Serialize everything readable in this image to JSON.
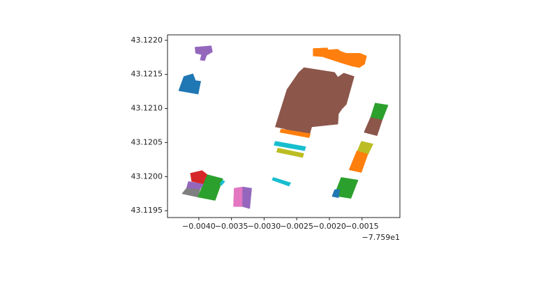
{
  "chart_data": {
    "type": "polygons",
    "x_offset_label": "−7.759e1",
    "xlim": [
      -0.00448,
      -0.00092
    ],
    "ylim": [
      43.1194,
      43.12208
    ],
    "xticks": [
      {
        "value": -0.004,
        "label": "−0.0040"
      },
      {
        "value": -0.0035,
        "label": "−0.0035"
      },
      {
        "value": -0.003,
        "label": "−0.0030"
      },
      {
        "value": -0.0025,
        "label": "−0.0025"
      },
      {
        "value": -0.002,
        "label": "−0.0020"
      },
      {
        "value": -0.0015,
        "label": "−0.0015"
      }
    ],
    "yticks": [
      43.1195,
      {
        "value": 43.12,
        "label": "43.1200"
      },
      43.1205,
      {
        "value": 43.121,
        "label": "43.1210"
      },
      43.1215,
      {
        "value": 43.122,
        "label": "43.1220"
      }
    ],
    "polygons": [
      {
        "color": "#9467bd",
        "x": [
          -0.00406,
          -0.00381,
          -0.00379,
          -0.00388,
          -0.00391,
          -0.00398,
          -0.00396,
          -0.00405
        ],
        "y": [
          43.1219,
          43.12192,
          43.12183,
          43.12178,
          43.1217,
          43.12171,
          43.12179,
          43.12181
        ]
      },
      {
        "color": "#1f77b4",
        "x": [
          -0.00423,
          -0.00409,
          -0.00405,
          -0.00397,
          -0.00401,
          -0.00431
        ],
        "y": [
          43.12147,
          43.12151,
          43.12141,
          43.1214,
          43.12121,
          43.12126
        ]
      },
      {
        "color": "#ff7f0e",
        "x": [
          -0.00225,
          -0.00203,
          -0.00202,
          -0.00187,
          -0.00183,
          -0.00174,
          -0.00153,
          -0.00143,
          -0.00146,
          -0.00154,
          -0.00165,
          -0.00179,
          -0.00192,
          -0.00211,
          -0.00225
        ],
        "y": [
          43.12188,
          43.12189,
          43.12186,
          43.12187,
          43.12184,
          43.12181,
          43.12181,
          43.12177,
          43.12165,
          43.1216,
          43.12162,
          43.12166,
          43.1217,
          43.12176,
          43.12177
        ]
      },
      {
        "color": "#8c564b",
        "x": [
          -0.00283,
          -0.00265,
          -0.00247,
          -0.00239,
          -0.00192,
          -0.00187,
          -0.00178,
          -0.00162,
          -0.00174,
          -0.00181,
          -0.00186,
          -0.00187,
          -0.00227,
          -0.0023,
          -0.00256,
          -0.00268
        ],
        "y": [
          43.12073,
          43.12128,
          43.12153,
          43.1216,
          43.12153,
          43.12146,
          43.12152,
          43.12147,
          43.12106,
          43.12099,
          43.12092,
          43.12077,
          43.12073,
          43.12063,
          43.12064,
          43.1207
        ]
      },
      {
        "color": "#ff7f0e",
        "x": [
          -0.00274,
          -0.00229,
          -0.00231,
          -0.00276
        ],
        "y": [
          43.1207,
          43.12063,
          43.12057,
          43.12065
        ]
      },
      {
        "color": "#17becf",
        "x": [
          -0.00283,
          -0.00236,
          -0.00238,
          -0.00285
        ],
        "y": [
          43.12052,
          43.12044,
          43.12038,
          43.12046
        ]
      },
      {
        "color": "#bcbd22",
        "x": [
          -0.00279,
          -0.00239,
          -0.00241,
          -0.00281
        ],
        "y": [
          43.12042,
          43.12034,
          43.12028,
          43.12036
        ]
      },
      {
        "color": "#2ca02c",
        "x": [
          -0.0013,
          -0.0011,
          -0.00119,
          -0.00137
        ],
        "y": [
          43.12108,
          43.12105,
          43.12083,
          43.12087
        ]
      },
      {
        "color": "#8c564b",
        "x": [
          -0.00137,
          -0.00119,
          -0.00127,
          -0.00147
        ],
        "y": [
          43.12087,
          43.12083,
          43.1206,
          43.12065
        ]
      },
      {
        "color": "#bcbd22",
        "x": [
          -0.00151,
          -0.00133,
          -0.00141,
          -0.00158
        ],
        "y": [
          43.12052,
          43.12048,
          43.12032,
          43.12036
        ]
      },
      {
        "color": "#ff7f0e",
        "x": [
          -0.00158,
          -0.00141,
          -0.00151,
          -0.0017
        ],
        "y": [
          43.12038,
          43.12033,
          43.12006,
          43.1201
        ]
      },
      {
        "color": "#2ca02c",
        "x": [
          -0.00182,
          -0.00156,
          -0.00167,
          -0.00193
        ],
        "y": [
          43.11999,
          43.11995,
          43.11968,
          43.11972
        ]
      },
      {
        "color": "#1f77b4",
        "x": [
          -0.00192,
          -0.00184,
          -0.00186,
          -0.00196
        ],
        "y": [
          43.11981,
          43.11981,
          43.11969,
          43.11971
        ]
      },
      {
        "color": "#17becf",
        "x": [
          -0.00286,
          -0.00259,
          -0.00262,
          -0.00288
        ],
        "y": [
          43.11999,
          43.11991,
          43.11986,
          43.11995
        ]
      },
      {
        "color": "#d62728",
        "x": [
          -0.00413,
          -0.00395,
          -0.00387,
          -0.00393,
          -0.00411
        ],
        "y": [
          43.12005,
          43.12009,
          43.12003,
          43.11989,
          43.11993
        ]
      },
      {
        "color": "#2ca02c",
        "x": [
          -0.00387,
          -0.00363,
          -0.00375,
          -0.00402,
          -0.00393
        ],
        "y": [
          43.12003,
          43.11997,
          43.11965,
          43.1197,
          43.11989
        ]
      },
      {
        "color": "#9467bd",
        "x": [
          -0.00416,
          -0.00393,
          -0.00398,
          -0.00419
        ],
        "y": [
          43.11993,
          43.11989,
          43.11981,
          43.11983
        ]
      },
      {
        "color": "#7f7f7f",
        "x": [
          -0.00419,
          -0.00398,
          -0.00402,
          -0.00426
        ],
        "y": [
          43.11983,
          43.11981,
          43.1197,
          43.11975
        ]
      },
      {
        "color": "#17becf",
        "x": [
          -0.00364,
          -0.0036,
          -0.00365,
          -0.00368
        ],
        "y": [
          43.11995,
          43.11993,
          43.11987,
          43.11989
        ]
      },
      {
        "color": "#e377c2",
        "x": [
          -0.00346,
          -0.00333,
          -0.00333,
          -0.00347
        ],
        "y": [
          43.11983,
          43.11985,
          43.11956,
          43.11956
        ]
      },
      {
        "color": "#9467bd",
        "x": [
          -0.00333,
          -0.00319,
          -0.00322,
          -0.00333
        ],
        "y": [
          43.11985,
          43.11983,
          43.11953,
          43.11956
        ]
      }
    ]
  }
}
